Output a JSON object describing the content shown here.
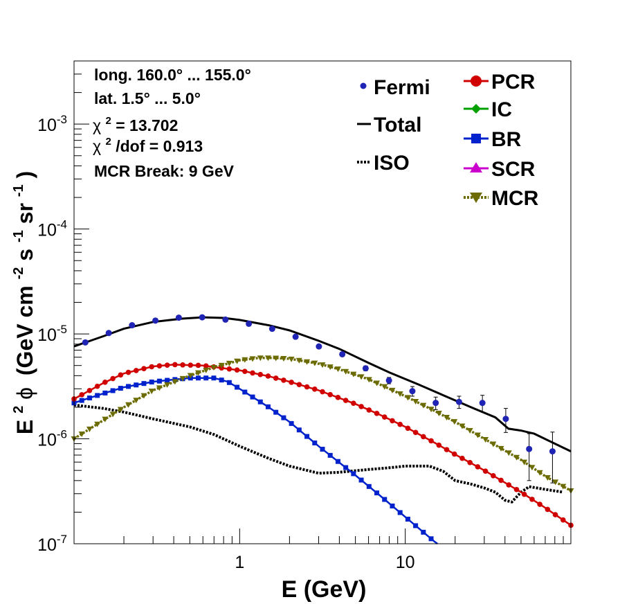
{
  "chart_data": {
    "type": "scatter",
    "xlabel": "E (GeV)",
    "ylabel": {
      "prefix": "E",
      "prefix_sup": "2",
      "phi": "ϕ",
      "unit_open": "(GeV cm",
      "sup1": "-2",
      "mid1": " s",
      "sup2": "-1",
      "mid2": " sr",
      "sup3": "-1",
      "close": ")"
    },
    "xscale": "log",
    "yscale": "log",
    "xlim": [
      0.1,
      100
    ],
    "ylim": [
      1e-07,
      0.004
    ],
    "grid": false,
    "legend_position": "top-right",
    "x_tick_labels": [
      {
        "value": 1,
        "label": "1"
      },
      {
        "value": 10,
        "label": "10"
      }
    ],
    "y_tick_labels": [
      {
        "value": 1e-07,
        "base": "10",
        "exp": "-7"
      },
      {
        "value": 1e-06,
        "base": "10",
        "exp": "-6"
      },
      {
        "value": 1e-05,
        "base": "10",
        "exp": "-5"
      },
      {
        "value": 0.0001,
        "base": "10",
        "exp": "-4"
      },
      {
        "value": 0.001,
        "base": "10",
        "exp": "-3"
      }
    ],
    "info_text": {
      "line1": "long. 160.0° ... 155.0°",
      "line2": "lat. 1.5° ... 5.0°",
      "chi_symbol": "χ",
      "chi_sup": "2",
      "chi_value": " = 13.702",
      "chidof_sup": "2",
      "chidof_value": "/dof = 0.913",
      "break_label": "MCR Break:  9 GeV"
    },
    "legend": {
      "fermi": "Fermi",
      "total": "Total",
      "iso": "ISO",
      "pcr": "PCR",
      "ic": "IC",
      "br": "BR",
      "scr": "SCR",
      "mcr": "MCR"
    },
    "colors": {
      "fermi": "#1f24b5",
      "total": "#000000",
      "iso": "#000000",
      "pcr": "#d10000",
      "ic": "#00a000",
      "br": "#0022cc",
      "scr": "#cc00cc",
      "mcr": "#6b6b00"
    },
    "series": {
      "fermi": {
        "x": [
          0.117,
          0.162,
          0.224,
          0.31,
          0.429,
          0.594,
          0.821,
          1.136,
          1.572,
          2.176,
          3.01,
          4.166,
          5.764,
          7.975,
          11.04,
          15.27,
          21.13,
          29.23,
          40.45,
          55.97,
          77.44
        ],
        "y": [
          8.3e-06,
          1.02e-05,
          1.21e-05,
          1.34e-05,
          1.43e-05,
          1.44e-05,
          1.37e-05,
          1.25e-05,
          1.12e-05,
          9.4e-06,
          7.6e-06,
          6.4e-06,
          4.7e-06,
          3.6e-06,
          2.85e-06,
          2.2e-06,
          2.25e-06,
          2.2e-06,
          1.55e-06,
          8e-07,
          7.6e-07
        ],
        "err_lo": [
          3e-07,
          3e-07,
          3e-07,
          3e-07,
          3e-07,
          3e-07,
          3e-07,
          3e-07,
          3e-07,
          3e-07,
          3e-07,
          3e-07,
          2.5e-07,
          2.5e-07,
          3e-07,
          3e-07,
          3e-07,
          4e-07,
          4e-07,
          4e-07,
          3.8e-07
        ],
        "err_hi": [
          3e-07,
          3e-07,
          3e-07,
          3e-07,
          3e-07,
          3e-07,
          3e-07,
          3e-07,
          3e-07,
          3e-07,
          3e-07,
          3e-07,
          2.5e-07,
          2.5e-07,
          3e-07,
          3e-07,
          3e-07,
          4e-07,
          4e-07,
          3.2e-07,
          4e-07
        ]
      },
      "total": {
        "x": [
          0.1,
          0.15,
          0.2,
          0.3,
          0.45,
          0.6,
          0.8,
          1.0,
          1.5,
          2.0,
          3.0,
          4.0,
          6.0,
          8.0,
          12.0,
          17.0,
          25.0,
          35.0,
          42.0,
          50.0,
          60.0,
          80.0,
          100.0
        ],
        "y": [
          7.6e-06,
          9.5e-06,
          1.12e-05,
          1.3e-05,
          1.4e-05,
          1.44e-05,
          1.42e-05,
          1.36e-05,
          1.21e-05,
          1.08e-05,
          8.6e-06,
          7.2e-06,
          5.3e-06,
          4.3e-06,
          3.3e-06,
          2.6e-06,
          2e-06,
          1.6e-06,
          1.25e-06,
          1.2e-06,
          1.12e-06,
          9e-07,
          7.6e-07
        ]
      },
      "iso": {
        "x": [
          0.1,
          0.15,
          0.2,
          0.3,
          0.5,
          0.7,
          1.0,
          1.5,
          2.0,
          3.0,
          4.0,
          6.0,
          8.0,
          10.0,
          14.0,
          17.0,
          20.0,
          25.0,
          30.0,
          35.0,
          40.0,
          44.0,
          50.0,
          56.0,
          70.0,
          90.0
        ],
        "y": [
          2.1e-06,
          1.95e-06,
          1.8e-06,
          1.55e-06,
          1.3e-06,
          1.1e-06,
          8.5e-07,
          6.5e-07,
          5.5e-07,
          4.7e-07,
          4.8e-07,
          5.1e-07,
          5.3e-07,
          5.5e-07,
          5.5e-07,
          4.9e-07,
          4e-07,
          3.7e-07,
          3.4e-07,
          3.1e-07,
          2.6e-07,
          2.5e-07,
          3.1e-07,
          3.5e-07,
          3.3e-07,
          3.1e-07
        ]
      },
      "pcr": {
        "x": [
          0.1,
          0.15,
          0.2,
          0.3,
          0.4,
          0.6,
          1.0,
          1.5,
          2.0,
          3.0,
          5.0,
          7.0,
          10.0,
          15.0,
          20.0,
          30.0,
          50.0,
          70.0,
          100.0
        ],
        "y": [
          2.4e-06,
          3.4e-06,
          4.2e-06,
          4.9e-06,
          5.1e-06,
          5e-06,
          4.5e-06,
          3.95e-06,
          3.5e-06,
          2.9e-06,
          2.15e-06,
          1.7e-06,
          1.3e-06,
          9.2e-07,
          7.1e-07,
          5e-07,
          3.1e-07,
          2.2e-07,
          1.5e-07
        ]
      },
      "br": {
        "x": [
          0.1,
          0.15,
          0.2,
          0.3,
          0.5,
          0.7,
          0.85,
          1.0,
          1.5,
          2.0,
          3.0,
          5.0,
          7.0,
          10.0,
          15.0,
          18.0
        ],
        "y": [
          2.2e-06,
          2.7e-06,
          3.1e-06,
          3.5e-06,
          3.8e-06,
          3.8e-06,
          3.5e-06,
          3e-06,
          2e-06,
          1.45e-06,
          8.5e-07,
          4.5e-07,
          2.9e-07,
          1.8e-07,
          1.05e-07,
          8.5e-08
        ]
      },
      "mcr": {
        "x": [
          0.1,
          0.15,
          0.2,
          0.3,
          0.5,
          0.7,
          1.0,
          1.3,
          1.6,
          2.0,
          3.0,
          4.0,
          6.0,
          8.0,
          10.0,
          15.0,
          20.0,
          30.0,
          50.0,
          70.0,
          100.0
        ],
        "y": [
          1e-06,
          1.5e-06,
          2e-06,
          2.9e-06,
          4e-06,
          4.8e-06,
          5.6e-06,
          5.9e-06,
          5.9e-06,
          5.8e-06,
          5.2e-06,
          4.6e-06,
          3.7e-06,
          3e-06,
          2.55e-06,
          1.85e-06,
          1.45e-06,
          1e-06,
          6.3e-07,
          4.4e-07,
          3.2e-07
        ]
      }
    }
  }
}
